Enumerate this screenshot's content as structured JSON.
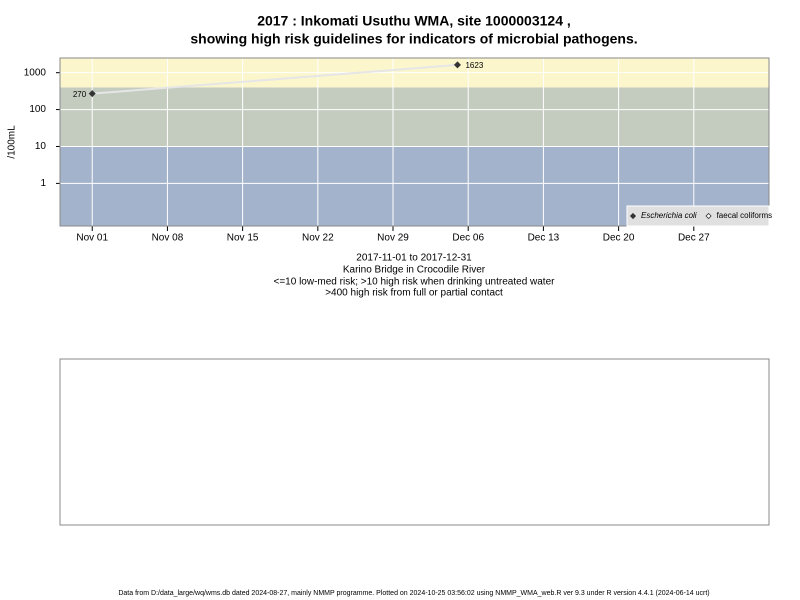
{
  "chart_data": {
    "type": "line",
    "title": [
      "2017 : Inkomati Usuthu WMA, site 1000003124 ,",
      "showing high risk guidelines for indicators of microbial pathogens."
    ],
    "y_label": "/100mL",
    "x": [
      "2017-11-01",
      "2017-12-05"
    ],
    "series": [
      {
        "name": "Escherichia coli",
        "color": "#333333",
        "line_color": "#e6e6e6",
        "values": [
          270,
          1623
        ],
        "value_labels": [
          "270",
          "1623"
        ]
      },
      {
        "name": "faecal coliforms",
        "color": "#333333",
        "values": [
          null,
          null
        ]
      }
    ],
    "log_y": true,
    "ylim": [
      0.07,
      2500
    ],
    "yticks": [
      1,
      10,
      100,
      1000
    ],
    "xlim": [
      "2017-10-29",
      "2018-01-03"
    ],
    "xticks": [
      {
        "value": "2017-11-01",
        "label": "Nov 01"
      },
      {
        "value": "2017-11-08",
        "label": "Nov 08"
      },
      {
        "value": "2017-11-15",
        "label": "Nov 15"
      },
      {
        "value": "2017-11-22",
        "label": "Nov 22"
      },
      {
        "value": "2017-11-29",
        "label": "Nov 29"
      },
      {
        "value": "2017-12-06",
        "label": "Dec 06"
      },
      {
        "value": "2017-12-13",
        "label": "Dec 13"
      },
      {
        "value": "2017-12-20",
        "label": "Dec 20"
      },
      {
        "value": "2017-12-27",
        "label": "Dec 27"
      }
    ],
    "bands": [
      {
        "upper": 10,
        "color": "#a3b3cc"
      },
      {
        "lower": 10,
        "upper": 400,
        "color": "#c4ccc0"
      },
      {
        "lower": 400,
        "color": "#fbf6cc"
      }
    ],
    "grid": true,
    "legend_position": "bottom-right",
    "captions": [
      "2017-11-01 to 2017-12-31",
      "Karino Bridge in Crocodile River",
      "<=10 low-med risk; >10 high risk when drinking untreated water",
      ">400 high risk from full or partial contact"
    ],
    "footer": "Data from D:/data_large/wq/wms.db dated 2024-08-27, mainly NMMP programme. Plotted on 2024-10-25 03:56:02 using NMMP_WMA_web.R ver 9.3 under R version 4.4.1 (2024-06-14 ucrt)"
  }
}
